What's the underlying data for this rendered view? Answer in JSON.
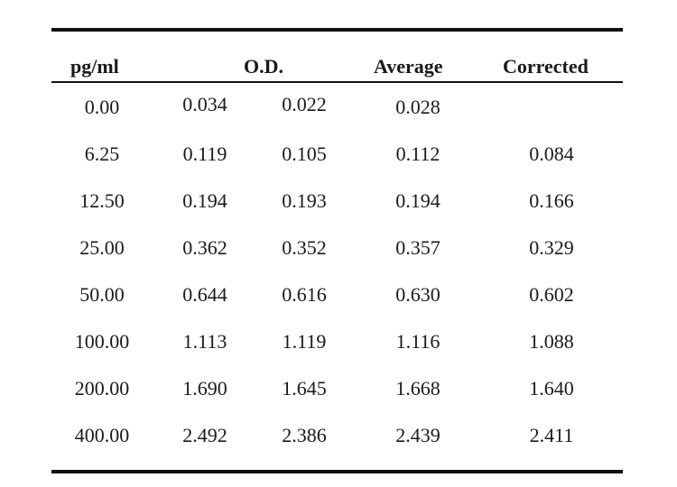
{
  "table": {
    "headers": {
      "concentration": "pg/ml",
      "od": "O.D.",
      "average": "Average",
      "corrected": "Corrected"
    },
    "rows": [
      {
        "concentration": "0.00",
        "od1": "0.034",
        "od2": "0.022",
        "average": "0.028",
        "corrected": ""
      },
      {
        "concentration": "6.25",
        "od1": "0.119",
        "od2": "0.105",
        "average": "0.112",
        "corrected": "0.084"
      },
      {
        "concentration": "12.50",
        "od1": "0.194",
        "od2": "0.193",
        "average": "0.194",
        "corrected": "0.166"
      },
      {
        "concentration": "25.00",
        "od1": "0.362",
        "od2": "0.352",
        "average": "0.357",
        "corrected": "0.329"
      },
      {
        "concentration": "50.00",
        "od1": "0.644",
        "od2": "0.616",
        "average": "0.630",
        "corrected": "0.602"
      },
      {
        "concentration": "100.00",
        "od1": "1.113",
        "od2": "1.119",
        "average": "1.116",
        "corrected": "1.088"
      },
      {
        "concentration": "200.00",
        "od1": "1.690",
        "od2": "1.645",
        "average": "1.668",
        "corrected": "1.640"
      },
      {
        "concentration": "400.00",
        "od1": "2.492",
        "od2": "2.386",
        "average": "2.439",
        "corrected": "2.411"
      }
    ]
  }
}
